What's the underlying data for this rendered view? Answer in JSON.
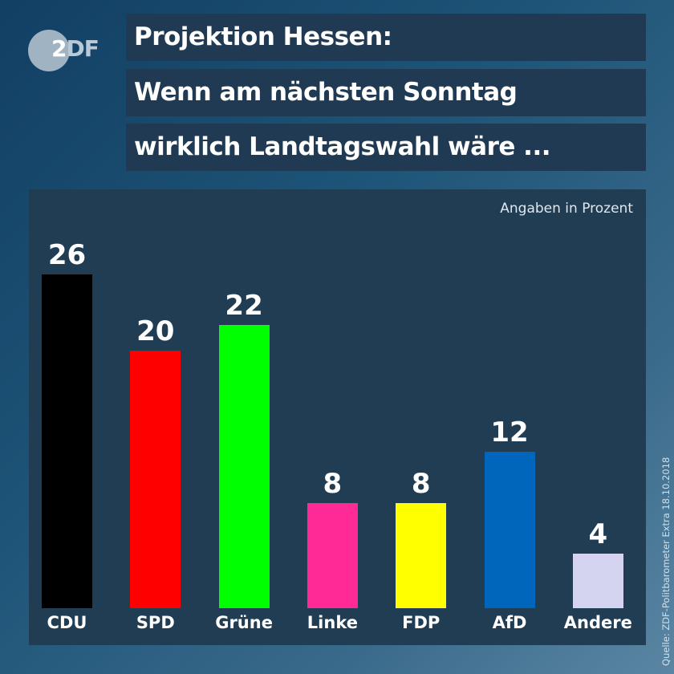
{
  "logo": {
    "text_main": "2",
    "text_rest": "DF"
  },
  "header": {
    "line1": "Projektion Hessen:",
    "line2": "Wenn am nächsten Sonntag",
    "line3": "wirklich Landtagswahl wäre ..."
  },
  "source": "Quelle: ZDF-Politbarometer Extra 18.10.2018",
  "chart_data": {
    "type": "bar",
    "title": "Projektion Hessen: Wenn am nächsten Sonntag wirklich Landtagswahl wäre ...",
    "unit_label": "Angaben in Prozent",
    "xlabel": "",
    "ylabel": "",
    "ylim": [
      0,
      26
    ],
    "grid": false,
    "categories": [
      "CDU",
      "SPD",
      "Grüne",
      "Linke",
      "FDP",
      "AfD",
      "Andere"
    ],
    "values": [
      26,
      20,
      22,
      8,
      8,
      12,
      4
    ],
    "value_labels": [
      "26",
      "20",
      "22",
      "8",
      "8",
      "12",
      "4"
    ],
    "colors": [
      "#000000",
      "#ff0000",
      "#00ff00",
      "#ff2a96",
      "#ffff00",
      "#0066bb",
      "#d4d3f0"
    ]
  }
}
